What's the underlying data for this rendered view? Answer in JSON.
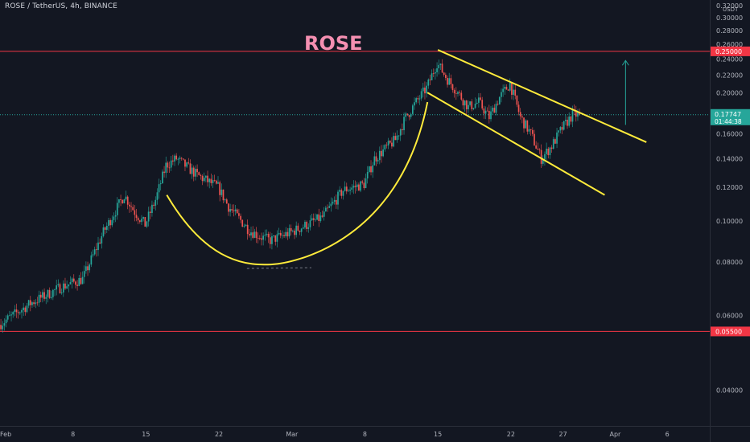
{
  "chart_data": {
    "type": "candlestick",
    "symbol_header": "ROSE / TetherUS, 4h, BINANCE",
    "title": "ROSE",
    "y_unit": "USDT",
    "ylim": [
      0.033,
      0.33
    ],
    "y_scale": "log",
    "y_ticks": [
      "0.32000",
      "0.30000",
      "0.28000",
      "0.26000",
      "0.24000",
      "0.22000",
      "0.20000",
      "0.18000",
      "0.16000",
      "0.14000",
      "0.12000",
      "0.10000",
      "0.08000",
      "0.06000",
      "0.04000"
    ],
    "y_tick_values": [
      0.32,
      0.3,
      0.28,
      0.26,
      0.24,
      0.22,
      0.2,
      0.18,
      0.16,
      0.14,
      0.12,
      0.1,
      0.08,
      0.06,
      0.04
    ],
    "x_ticks": [
      "Feb",
      "8",
      "15",
      "22",
      "Mar",
      "8",
      "15",
      "22",
      "27",
      "Apr",
      "6"
    ],
    "x_tick_dates": [
      "2021-02-01",
      "2021-02-08",
      "2021-02-15",
      "2021-02-22",
      "2021-03-01",
      "2021-03-08",
      "2021-03-15",
      "2021-03-22",
      "2021-03-27",
      "2021-04-01",
      "2021-04-06"
    ],
    "x_range": [
      "2021-02-01",
      "2021-04-10"
    ],
    "last_data_date": "2021-03-28",
    "horizontal_levels": [
      {
        "label": "0.25000",
        "value": 0.25,
        "color": "#f23645"
      },
      {
        "label": "0.05500",
        "value": 0.055,
        "color": "#f23645"
      }
    ],
    "current_price": {
      "label": "0.17747",
      "value": 0.17747,
      "countdown": "01:44:38",
      "color": "#26a69a"
    },
    "price_path": [
      {
        "date": "2021-02-01",
        "price": 0.057
      },
      {
        "date": "2021-02-04",
        "price": 0.064
      },
      {
        "date": "2021-02-07",
        "price": 0.07
      },
      {
        "date": "2021-02-09",
        "price": 0.073
      },
      {
        "date": "2021-02-11",
        "price": 0.094
      },
      {
        "date": "2021-02-13",
        "price": 0.115
      },
      {
        "date": "2021-02-14",
        "price": 0.105
      },
      {
        "date": "2021-02-15",
        "price": 0.098
      },
      {
        "date": "2021-02-16",
        "price": 0.112
      },
      {
        "date": "2021-02-17",
        "price": 0.135
      },
      {
        "date": "2021-02-18",
        "price": 0.14
      },
      {
        "date": "2021-02-20",
        "price": 0.128
      },
      {
        "date": "2021-02-22",
        "price": 0.12
      },
      {
        "date": "2021-02-23",
        "price": 0.108
      },
      {
        "date": "2021-02-25",
        "price": 0.095
      },
      {
        "date": "2021-02-26",
        "price": 0.092
      },
      {
        "date": "2021-02-27",
        "price": 0.09
      },
      {
        "date": "2021-03-01",
        "price": 0.094
      },
      {
        "date": "2021-03-04",
        "price": 0.102
      },
      {
        "date": "2021-03-06",
        "price": 0.118
      },
      {
        "date": "2021-03-08",
        "price": 0.122
      },
      {
        "date": "2021-03-09",
        "price": 0.14
      },
      {
        "date": "2021-03-11",
        "price": 0.155
      },
      {
        "date": "2021-03-12",
        "price": 0.175
      },
      {
        "date": "2021-03-13",
        "price": 0.19
      },
      {
        "date": "2021-03-14",
        "price": 0.205
      },
      {
        "date": "2021-03-15",
        "price": 0.235
      },
      {
        "date": "2021-03-16",
        "price": 0.215
      },
      {
        "date": "2021-03-17",
        "price": 0.2
      },
      {
        "date": "2021-03-18",
        "price": 0.185
      },
      {
        "date": "2021-03-19",
        "price": 0.19
      },
      {
        "date": "2021-03-20",
        "price": 0.175
      },
      {
        "date": "2021-03-21",
        "price": 0.195
      },
      {
        "date": "2021-03-22",
        "price": 0.21
      },
      {
        "date": "2021-03-23",
        "price": 0.175
      },
      {
        "date": "2021-03-24",
        "price": 0.16
      },
      {
        "date": "2021-03-25",
        "price": 0.14
      },
      {
        "date": "2021-03-26",
        "price": 0.15
      },
      {
        "date": "2021-03-27",
        "price": 0.165
      },
      {
        "date": "2021-03-28",
        "price": 0.17747
      }
    ],
    "annotations": [
      {
        "type": "cup-curve",
        "color": "#ffeb3b",
        "points": [
          {
            "date": "2021-02-17",
            "price": 0.115
          },
          {
            "date": "2021-02-27",
            "price": 0.079
          },
          {
            "date": "2021-03-14",
            "price": 0.19
          }
        ]
      },
      {
        "type": "channel-upper",
        "color": "#ffeb3b",
        "from": {
          "date": "2021-03-15",
          "price": 0.252
        },
        "to": {
          "date": "2021-04-04",
          "price": 0.153
        }
      },
      {
        "type": "channel-lower",
        "color": "#ffeb3b",
        "from": {
          "date": "2021-03-14",
          "price": 0.2
        },
        "to": {
          "date": "2021-03-31",
          "price": 0.115
        }
      },
      {
        "type": "target-arrow",
        "color": "#26a69a",
        "from": {
          "date": "2021-04-02",
          "price": 0.168
        },
        "to": {
          "date": "2021-04-02",
          "price": 0.238
        }
      }
    ],
    "grid": false,
    "legend": "none"
  }
}
